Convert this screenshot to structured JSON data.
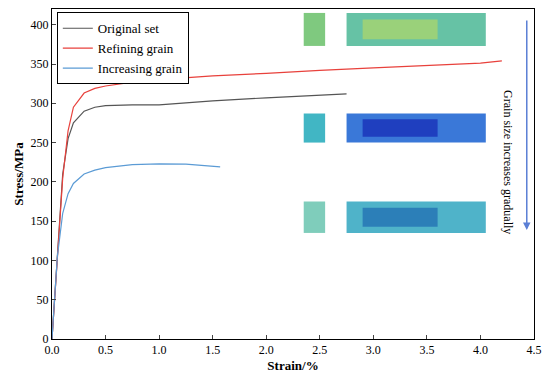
{
  "chart_data": {
    "type": "line",
    "xlabel": "Strain/%",
    "ylabel": "Stress/MPa",
    "xlim": [
      0,
      4.5
    ],
    "ylim": [
      0,
      420
    ],
    "xticks": [
      {
        "value": 0,
        "label": "0.0"
      },
      {
        "value": 0.5,
        "label": "0.5"
      },
      {
        "value": 1,
        "label": "1.0"
      },
      {
        "value": 1.5,
        "label": "1.5"
      },
      {
        "value": 2,
        "label": "2.0"
      },
      {
        "value": 2.5,
        "label": "2.5"
      },
      {
        "value": 3,
        "label": "3.0"
      },
      {
        "value": 3.5,
        "label": "3.5"
      },
      {
        "value": 4,
        "label": "4.0"
      },
      {
        "value": 4.5,
        "label": "4.5"
      }
    ],
    "yticks": [
      0,
      50,
      100,
      150,
      200,
      250,
      300,
      350,
      400
    ],
    "grid": false,
    "legend": "upper left",
    "annotations": [
      "Grain size increases gradually"
    ],
    "series": [
      {
        "name": "Original set",
        "color": "#555555",
        "x": [
          0,
          0.05,
          0.1,
          0.15,
          0.2,
          0.3,
          0.4,
          0.5,
          0.75,
          1.0,
          1.5,
          2.0,
          2.5,
          2.75
        ],
        "values": [
          0,
          110,
          210,
          255,
          275,
          290,
          295,
          297,
          298,
          298,
          303,
          307,
          310,
          312
        ]
      },
      {
        "name": "Refining grain",
        "color": "#e8413c",
        "x": [
          0,
          0.05,
          0.1,
          0.15,
          0.2,
          0.3,
          0.4,
          0.5,
          0.75,
          1.0,
          1.5,
          2.0,
          2.5,
          3.0,
          3.5,
          4.0,
          4.2
        ],
        "values": [
          0,
          110,
          205,
          265,
          295,
          313,
          319,
          322,
          327,
          330,
          335,
          338,
          342,
          345,
          348,
          351,
          354
        ]
      },
      {
        "name": "Increasing grain",
        "color": "#5b9bd5",
        "x": [
          0,
          0.05,
          0.1,
          0.15,
          0.2,
          0.3,
          0.4,
          0.5,
          0.75,
          1.0,
          1.25,
          1.5,
          1.57
        ],
        "values": [
          0,
          105,
          160,
          185,
          198,
          210,
          215,
          218,
          222,
          223,
          222.5,
          220,
          219
        ]
      }
    ]
  }
}
